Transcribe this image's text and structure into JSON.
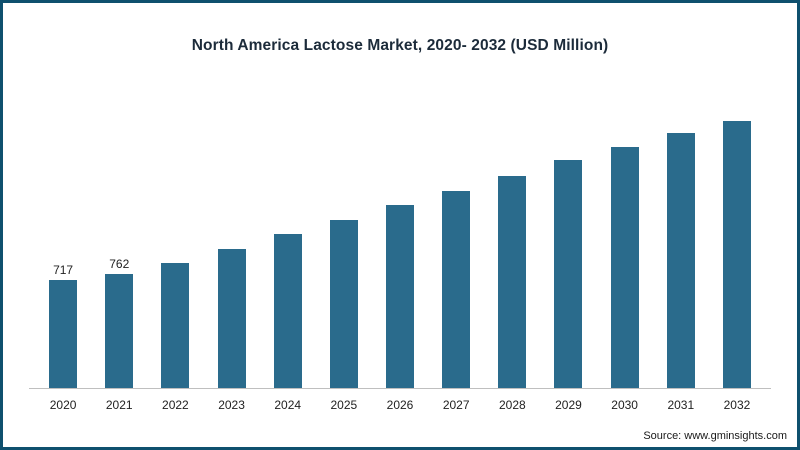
{
  "frame": {
    "border_color": "#0e506e",
    "background_color": "#ffffff"
  },
  "chart_data": {
    "type": "bar",
    "title": "North America Lactose Market, 2020- 2032 (USD Million)",
    "categories": [
      "2020",
      "2021",
      "2022",
      "2023",
      "2024",
      "2025",
      "2026",
      "2027",
      "2028",
      "2029",
      "2030",
      "2031",
      "2032"
    ],
    "values": [
      717,
      762,
      835,
      930,
      1025,
      1120,
      1220,
      1315,
      1415,
      1520,
      1610,
      1700,
      1780
    ],
    "data_labels": [
      "717",
      "762",
      "",
      "",
      "",
      "",
      "",
      "",
      "",
      "",
      "",
      "",
      ""
    ],
    "bar_color": "#2a6b8c",
    "title_color": "#1c2b3a",
    "axis_line_color": "#bfbfbf",
    "xlabel": "",
    "ylabel": "",
    "ylim": [
      0,
      1900
    ],
    "grid": false,
    "legend": "none"
  },
  "source": {
    "text": "Source: www.gminsights.com"
  }
}
